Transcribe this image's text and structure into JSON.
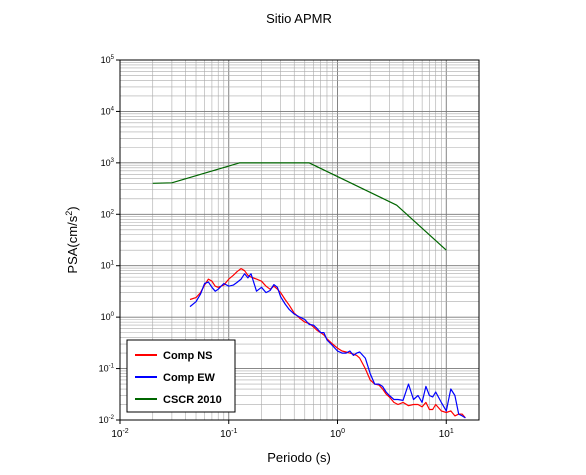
{
  "chart_data": {
    "type": "line",
    "title": "Sitio APMR",
    "xlabel": "Periodo (s)",
    "ylabel": {
      "prefix": "PSA(cm/s",
      "sup": "2",
      "suffix": ")"
    },
    "xscale": "log",
    "yscale": "log",
    "xlim": [
      0.01,
      20
    ],
    "ylim": [
      0.01,
      100000
    ],
    "grid": true,
    "legend_position": "bottom-left",
    "x_ticks": [
      {
        "value": 0.01,
        "base": "10",
        "exp": "-2"
      },
      {
        "value": 0.1,
        "base": "10",
        "exp": "-1"
      },
      {
        "value": 1,
        "base": "10",
        "exp": "0"
      },
      {
        "value": 10,
        "base": "10",
        "exp": "1"
      }
    ],
    "y_ticks": [
      {
        "value": 0.01,
        "base": "10",
        "exp": "-2"
      },
      {
        "value": 0.1,
        "base": "10",
        "exp": "-1"
      },
      {
        "value": 1,
        "base": "10",
        "exp": "0"
      },
      {
        "value": 10,
        "base": "10",
        "exp": "1"
      },
      {
        "value": 100,
        "base": "10",
        "exp": "2"
      },
      {
        "value": 1000,
        "base": "10",
        "exp": "3"
      },
      {
        "value": 10000,
        "base": "10",
        "exp": "4"
      },
      {
        "value": 100000,
        "base": "10",
        "exp": "5"
      }
    ],
    "series": [
      {
        "name": "Comp NS",
        "color": "#ff0000",
        "x": [
          0.044,
          0.05,
          0.055,
          0.06,
          0.065,
          0.07,
          0.075,
          0.08,
          0.09,
          0.1,
          0.11,
          0.12,
          0.13,
          0.14,
          0.15,
          0.16,
          0.18,
          0.2,
          0.22,
          0.24,
          0.26,
          0.28,
          0.3,
          0.33,
          0.36,
          0.4,
          0.45,
          0.5,
          0.55,
          0.6,
          0.65,
          0.7,
          0.75,
          0.8,
          0.9,
          1.0,
          1.1,
          1.2,
          1.3,
          1.4,
          1.5,
          1.6,
          1.8,
          2.0,
          2.2,
          2.4,
          2.6,
          2.8,
          3.0,
          3.3,
          3.6,
          4.0,
          4.5,
          5.0,
          5.5,
          6.0,
          6.5,
          7.0,
          7.5,
          8.0,
          9.0,
          10.0,
          11.0,
          12.0,
          13.0,
          14.0,
          15.0
        ],
        "y": [
          2.2,
          2.4,
          3.0,
          4.2,
          5.5,
          5.0,
          4.0,
          3.8,
          4.2,
          5.5,
          6.5,
          7.8,
          8.8,
          8.0,
          6.5,
          6.0,
          5.5,
          5.0,
          4.0,
          3.5,
          4.0,
          3.5,
          3.0,
          2.2,
          1.7,
          1.2,
          0.95,
          0.8,
          0.75,
          0.65,
          0.55,
          0.5,
          0.45,
          0.38,
          0.3,
          0.25,
          0.22,
          0.21,
          0.2,
          0.19,
          0.18,
          0.16,
          0.1,
          0.06,
          0.05,
          0.048,
          0.04,
          0.032,
          0.028,
          0.022,
          0.02,
          0.022,
          0.019,
          0.02,
          0.02,
          0.018,
          0.022,
          0.016,
          0.016,
          0.02,
          0.015,
          0.014,
          0.015,
          0.012,
          0.013,
          0.013,
          0.011
        ]
      },
      {
        "name": "Comp EW",
        "color": "#0000ff",
        "x": [
          0.044,
          0.05,
          0.055,
          0.06,
          0.065,
          0.07,
          0.075,
          0.08,
          0.09,
          0.1,
          0.11,
          0.12,
          0.13,
          0.14,
          0.15,
          0.16,
          0.18,
          0.2,
          0.22,
          0.24,
          0.26,
          0.28,
          0.3,
          0.33,
          0.36,
          0.4,
          0.45,
          0.5,
          0.55,
          0.6,
          0.65,
          0.7,
          0.75,
          0.8,
          0.9,
          1.0,
          1.1,
          1.2,
          1.3,
          1.4,
          1.5,
          1.6,
          1.8,
          2.0,
          2.2,
          2.4,
          2.6,
          2.8,
          3.0,
          3.3,
          3.6,
          4.0,
          4.5,
          5.0,
          5.5,
          6.0,
          6.5,
          7.0,
          7.5,
          8.0,
          9.0,
          10.0,
          11.0,
          12.0,
          13.0,
          14.0,
          15.0
        ],
        "y": [
          1.6,
          2.0,
          2.8,
          4.5,
          4.8,
          3.8,
          3.2,
          3.5,
          4.5,
          4.0,
          4.2,
          4.8,
          5.5,
          7.0,
          5.8,
          7.0,
          3.2,
          3.8,
          3.0,
          3.3,
          4.3,
          3.8,
          2.5,
          1.8,
          1.4,
          1.15,
          1.0,
          0.9,
          0.72,
          0.7,
          0.6,
          0.5,
          0.5,
          0.36,
          0.28,
          0.22,
          0.2,
          0.2,
          0.22,
          0.18,
          0.2,
          0.21,
          0.16,
          0.08,
          0.05,
          0.05,
          0.045,
          0.035,
          0.03,
          0.025,
          0.025,
          0.024,
          0.05,
          0.025,
          0.03,
          0.022,
          0.045,
          0.03,
          0.028,
          0.035,
          0.022,
          0.015,
          0.04,
          0.03,
          0.013,
          0.012,
          0.011
        ]
      },
      {
        "name": "CSCR 2010",
        "color": "#006600",
        "x": [
          0.02,
          0.03,
          0.125,
          0.55,
          3.5,
          10.0
        ],
        "y": [
          400,
          410,
          1000,
          1000,
          150,
          20
        ]
      }
    ]
  }
}
